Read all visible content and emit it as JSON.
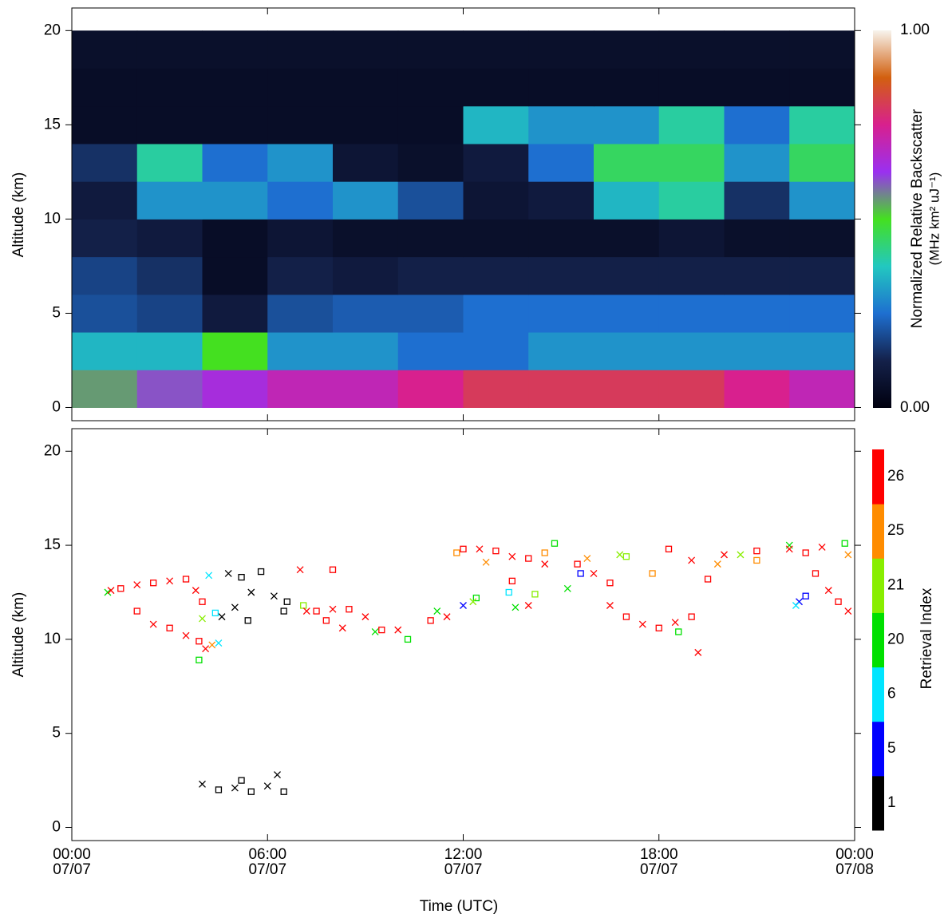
{
  "chart_data": [
    {
      "type": "heatmap",
      "ylabel": "Altitude (km)",
      "xlim": [
        0,
        24
      ],
      "xticks": [
        0,
        6,
        12,
        18,
        24
      ],
      "ylim": [
        -0.7,
        21.2
      ],
      "yticks": [
        0,
        5,
        10,
        15,
        20
      ],
      "x_edges": [
        0,
        2,
        4,
        6,
        8,
        10,
        12,
        14,
        16,
        18,
        20,
        22,
        24
      ],
      "y_edges": [
        0,
        2,
        4,
        6,
        8,
        10,
        12,
        14,
        16,
        18,
        20
      ],
      "values": [
        [
          0.55,
          0.6,
          0.65,
          0.7,
          0.7,
          0.75,
          0.8,
          0.8,
          0.8,
          0.8,
          0.75,
          0.7
        ],
        [
          0.35,
          0.35,
          0.5,
          0.3,
          0.3,
          0.25,
          0.25,
          0.3,
          0.3,
          0.3,
          0.3,
          0.3
        ],
        [
          0.2,
          0.18,
          0.1,
          0.2,
          0.22,
          0.22,
          0.25,
          0.25,
          0.25,
          0.25,
          0.25,
          0.25
        ],
        [
          0.18,
          0.15,
          0.05,
          0.12,
          0.1,
          0.12,
          0.12,
          0.12,
          0.12,
          0.12,
          0.12,
          0.12
        ],
        [
          0.12,
          0.1,
          0.05,
          0.08,
          0.06,
          0.06,
          0.06,
          0.06,
          0.06,
          0.08,
          0.06,
          0.06
        ],
        [
          0.1,
          0.3,
          0.3,
          0.25,
          0.3,
          0.2,
          0.08,
          0.1,
          0.35,
          0.4,
          0.15,
          0.3
        ],
        [
          0.15,
          0.4,
          0.25,
          0.3,
          0.08,
          0.06,
          0.1,
          0.25,
          0.45,
          0.45,
          0.3,
          0.45
        ],
        [
          0.05,
          0.05,
          0.05,
          0.05,
          0.05,
          0.05,
          0.35,
          0.3,
          0.3,
          0.4,
          0.25,
          0.4
        ],
        [
          0.05,
          0.05,
          0.05,
          0.05,
          0.05,
          0.05,
          0.05,
          0.05,
          0.05,
          0.05,
          0.05,
          0.05
        ],
        [
          0.06,
          0.06,
          0.06,
          0.06,
          0.06,
          0.06,
          0.06,
          0.06,
          0.06,
          0.06,
          0.06,
          0.06
        ]
      ],
      "clim": [
        0,
        1
      ],
      "colormap": [
        "#00000f",
        "#14214a",
        "#1e6fd0",
        "#22c8c0",
        "#44e020",
        "#9a30f0",
        "#d8208e",
        "#d2600f",
        "#f7f4ee"
      ],
      "cticks": [
        {
          "value": 0,
          "label": "0.00"
        },
        {
          "value": 1,
          "label": "1.00"
        }
      ],
      "colorbar_label": [
        "Normalized Relative Backscatter",
        "(MHz km² uJ⁻¹)"
      ]
    },
    {
      "type": "scatter",
      "ylabel": "Altitude (km)",
      "xlabel": "Time (UTC)",
      "legend_title": "Retrieval Index",
      "xlim": [
        0,
        24
      ],
      "xticks": [
        {
          "value": 0,
          "label": "00:00\n07/07"
        },
        {
          "value": 6,
          "label": "06:00\n07/07"
        },
        {
          "value": 12,
          "label": "12:00\n07/07"
        },
        {
          "value": 18,
          "label": "18:00\n07/07"
        },
        {
          "value": 24,
          "label": "00:00\n07/08"
        }
      ],
      "ylim": [
        -0.7,
        21.2
      ],
      "yticks": [
        0,
        5,
        10,
        15,
        20
      ],
      "series": [
        {
          "name": "1",
          "color": "#000000",
          "x": [
            4,
            4.5,
            5,
            5.5,
            6,
            6.5,
            6.3,
            5.2,
            4.8,
            5.2,
            5.5,
            5.8,
            6.2,
            6.5,
            5,
            5.4,
            4.6,
            6.6
          ],
          "y": [
            2.3,
            2,
            2.1,
            1.9,
            2.2,
            1.9,
            2.8,
            2.5,
            13.5,
            13.3,
            12.5,
            13.6,
            12.3,
            11.5,
            11.7,
            11,
            11.2,
            12
          ]
        },
        {
          "name": "5",
          "color": "#0000ff",
          "x": [
            12,
            15.6,
            22.3,
            22.5
          ],
          "y": [
            11.8,
            13.5,
            12,
            12.3
          ]
        },
        {
          "name": "6",
          "color": "#00e5ff",
          "x": [
            4.2,
            4.4,
            4.5,
            13.4,
            22.2
          ],
          "y": [
            13.4,
            11.4,
            9.8,
            12.5,
            11.8
          ]
        },
        {
          "name": "20",
          "color": "#00e000",
          "x": [
            1.1,
            3.9,
            9.3,
            10.3,
            11.2,
            12.4,
            13.6,
            14.8,
            15.2,
            18.6,
            22,
            23.7
          ],
          "y": [
            12.5,
            8.9,
            10.4,
            10,
            11.5,
            12.2,
            11.7,
            15.1,
            12.7,
            10.4,
            15,
            15.1
          ]
        },
        {
          "name": "21",
          "color": "#88ee00",
          "x": [
            4,
            7.1,
            12.3,
            14.2,
            16.8,
            17,
            20.5
          ],
          "y": [
            11.1,
            11.8,
            12,
            12.4,
            14.5,
            14.4,
            14.5
          ]
        },
        {
          "name": "25",
          "color": "#ff8c00",
          "x": [
            4.3,
            11.8,
            12.7,
            14.5,
            15.8,
            17.8,
            19.8,
            21,
            23.8
          ],
          "y": [
            9.7,
            14.6,
            14.1,
            14.6,
            14.3,
            13.5,
            14,
            14.2,
            14.5
          ]
        },
        {
          "name": "26",
          "color": "#ff0000",
          "x": [
            1.2,
            2,
            2.5,
            3,
            3.5,
            3.9,
            4.1,
            1.5,
            2,
            2.5,
            3,
            3.5,
            3.8,
            4,
            7.2,
            7.5,
            8,
            8.5,
            9,
            9.5,
            8.3,
            7.8,
            7,
            8,
            10,
            11,
            11.5,
            12,
            12.5,
            13,
            13.5,
            14,
            14.5,
            13.5,
            14,
            15.5,
            16,
            16.5,
            16.5,
            17,
            17.5,
            18,
            18.5,
            19,
            19.2,
            18.3,
            19,
            19.5,
            20,
            21,
            22,
            22.5,
            23,
            22.8,
            23.2,
            23.5,
            23.8
          ],
          "y": [
            12.6,
            11.5,
            10.8,
            10.6,
            10.2,
            9.9,
            9.5,
            12.7,
            12.9,
            13,
            13.1,
            13.2,
            12.6,
            12,
            11.5,
            11.5,
            11.6,
            11.6,
            11.2,
            10.5,
            10.6,
            11,
            13.7,
            13.7,
            10.5,
            11,
            11.2,
            14.8,
            14.8,
            14.7,
            14.4,
            14.3,
            14,
            13.1,
            11.8,
            14,
            13.5,
            13,
            11.8,
            11.2,
            10.8,
            10.6,
            10.9,
            11.2,
            9.3,
            14.8,
            14.2,
            13.2,
            14.5,
            14.7,
            14.8,
            14.6,
            14.9,
            13.5,
            12.6,
            12,
            11.5
          ]
        }
      ]
    }
  ]
}
